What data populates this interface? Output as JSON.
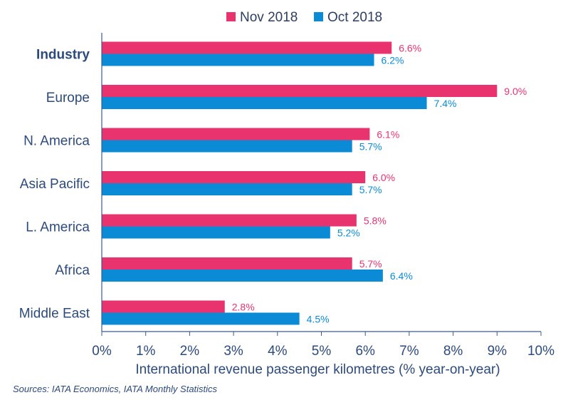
{
  "chart_data": {
    "type": "bar",
    "orientation": "horizontal",
    "categories": [
      "Industry",
      "Europe",
      "N. America",
      "Asia Pacific",
      "L. America",
      "Africa",
      "Middle East"
    ],
    "series": [
      {
        "name": "Nov 2018",
        "color": "#e8336e",
        "values": [
          6.6,
          9.0,
          6.1,
          6.0,
          5.8,
          5.7,
          2.8
        ],
        "labels": [
          "6.6%",
          "9.0%",
          "6.1%",
          "6.0%",
          "5.8%",
          "5.7%",
          "2.8%"
        ]
      },
      {
        "name": "Oct 2018",
        "color": "#0b8bd6",
        "values": [
          6.2,
          7.4,
          5.7,
          5.7,
          5.2,
          6.4,
          4.5
        ],
        "labels": [
          "6.2%",
          "7.4%",
          "5.7%",
          "5.7%",
          "5.2%",
          "6.4%",
          "4.5%"
        ]
      }
    ],
    "xlim": [
      0,
      10
    ],
    "xticks": [
      "0%",
      "1%",
      "2%",
      "3%",
      "4%",
      "5%",
      "6%",
      "7%",
      "8%",
      "9%",
      "10%"
    ],
    "xlabel": "International revenue passenger kilometres (% year-on-year)",
    "ylabel": "",
    "legend_position": "top-center",
    "bold_category": "Industry",
    "axis_color": "#3c5a8c"
  },
  "source_text": "Sources: IATA Economics, IATA Monthly Statistics"
}
